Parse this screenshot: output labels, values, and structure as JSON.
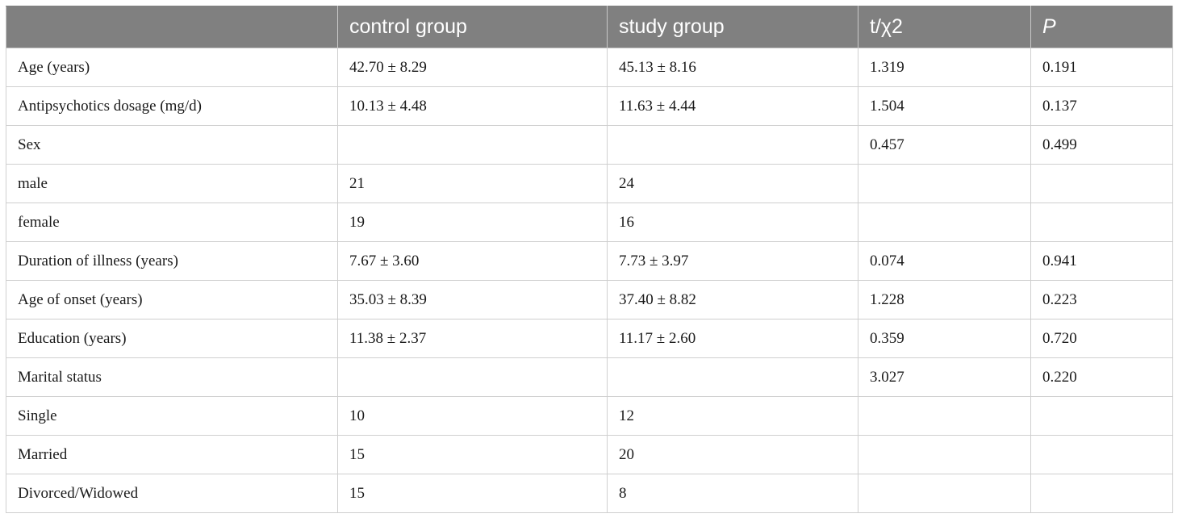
{
  "table": {
    "headers": [
      "",
      "control group",
      "study group",
      "t/χ2",
      "P"
    ],
    "rows": [
      [
        "Age (years)",
        "42.70 ± 8.29",
        "45.13 ± 8.16",
        "1.319",
        "0.191"
      ],
      [
        "Antipsychotics dosage (mg/d)",
        "10.13 ± 4.48",
        "11.63 ± 4.44",
        "1.504",
        "0.137"
      ],
      [
        "Sex",
        "",
        "",
        "0.457",
        "0.499"
      ],
      [
        "male",
        "21",
        "24",
        "",
        ""
      ],
      [
        "female",
        "19",
        "16",
        "",
        ""
      ],
      [
        "Duration of illness (years)",
        "7.67 ± 3.60",
        "7.73 ± 3.97",
        "0.074",
        "0.941"
      ],
      [
        "Age of onset (years)",
        "35.03 ± 8.39",
        "37.40 ± 8.82",
        "1.228",
        "0.223"
      ],
      [
        "Education (years)",
        "11.38 ± 2.37",
        "11.17 ± 2.60",
        "0.359",
        "0.720"
      ],
      [
        "Marital status",
        "",
        "",
        "3.027",
        "0.220"
      ],
      [
        "Single",
        "10",
        "12",
        "",
        ""
      ],
      [
        "Married",
        "15",
        "20",
        "",
        ""
      ],
      [
        "Divorced/Widowed",
        "15",
        "8",
        "",
        ""
      ]
    ]
  }
}
